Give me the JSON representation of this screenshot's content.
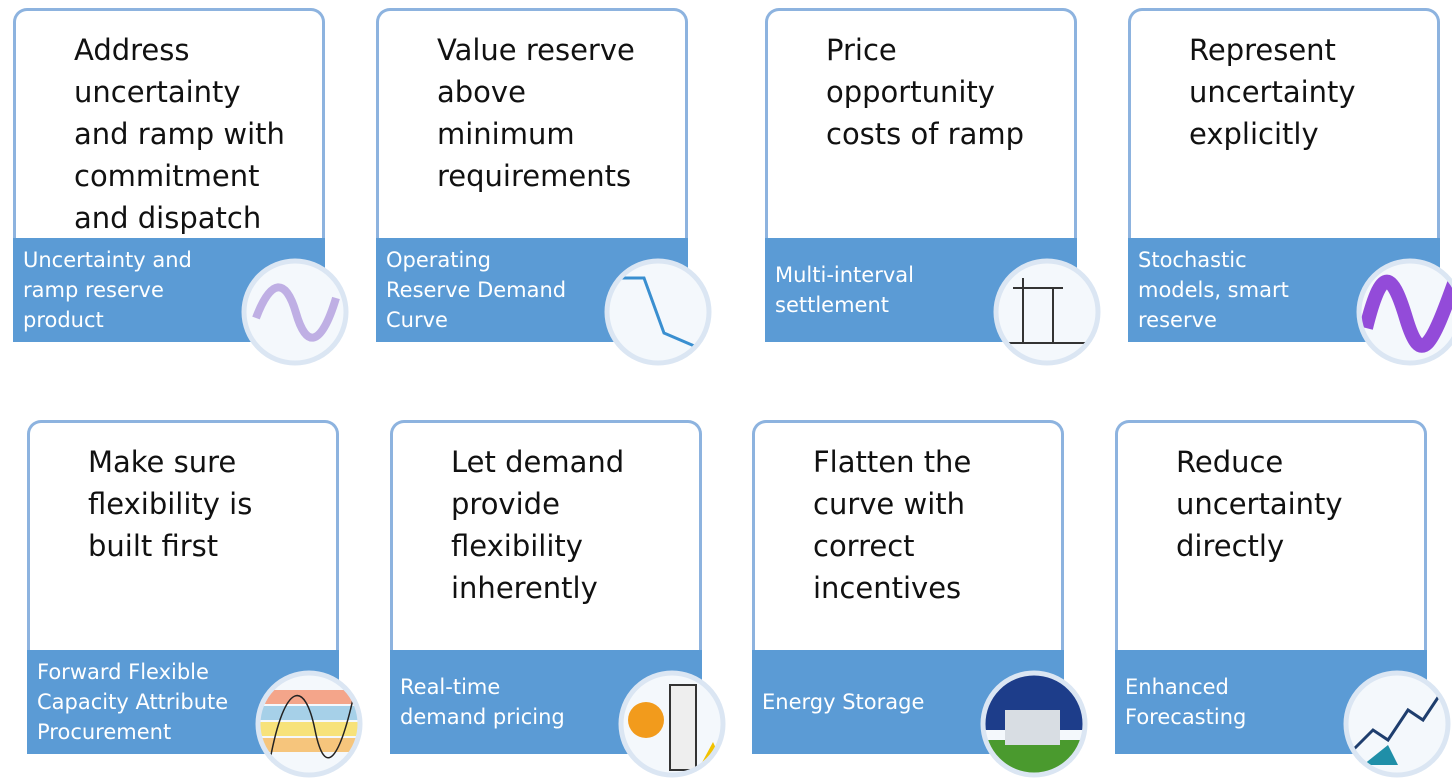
{
  "cards": [
    {
      "heading": [
        "Address",
        "uncertainty",
        "and ramp with",
        "commitment",
        "and dispatch"
      ],
      "label": [
        "Uncertainty and",
        "ramp reserve",
        "product"
      ]
    },
    {
      "heading": [
        "Value reserve",
        "above",
        "minimum",
        "requirements"
      ],
      "label": [
        "Operating",
        "Reserve Demand",
        "Curve"
      ]
    },
    {
      "heading": [
        "Price",
        "opportunity",
        "costs of ramp"
      ],
      "label": [
        "Multi-interval",
        "settlement"
      ]
    },
    {
      "heading": [
        "Represent",
        "uncertainty",
        "explicitly"
      ],
      "label": [
        "Stochastic",
        "models, smart",
        "reserve"
      ]
    },
    {
      "heading": [
        "Make sure",
        "flexibility is",
        "built first"
      ],
      "label": [
        "Forward Flexible",
        "Capacity Attribute",
        "Procurement"
      ]
    },
    {
      "heading": [
        "Let demand",
        "provide",
        "flexibility",
        "inherently"
      ],
      "label": [
        "Real-time",
        "demand pricing"
      ]
    },
    {
      "heading": [
        "Flatten the",
        "curve with",
        "correct",
        "incentives"
      ],
      "label": [
        "Energy Storage"
      ]
    },
    {
      "heading": [
        "Reduce",
        "uncertainty",
        "directly"
      ],
      "label": [
        "Enhanced",
        "Forecasting"
      ]
    }
  ]
}
